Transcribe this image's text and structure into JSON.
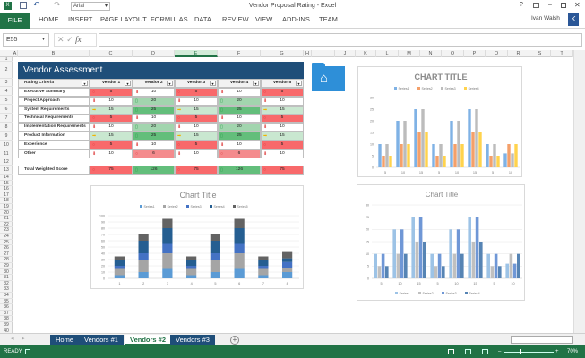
{
  "window": {
    "title": "Vendor Proposal Rating - Excel",
    "user": "Ivan Walsh",
    "avatar_letter": "K",
    "font_box": "Arial"
  },
  "ribbon": {
    "file": "FILE",
    "tabs": [
      "HOME",
      "INSERT",
      "PAGE LAYOUT",
      "FORMULAS",
      "DATA",
      "REVIEW",
      "VIEW",
      "ADD-INS",
      "TEAM"
    ]
  },
  "formula_bar": {
    "name_box": "E55",
    "fx": "fx",
    "value": ""
  },
  "columns": [
    "A",
    "B",
    "C",
    "D",
    "E",
    "F",
    "G",
    "H",
    "I",
    "J",
    "K",
    "L",
    "M",
    "N",
    "O",
    "P",
    "Q",
    "R",
    "S",
    "T"
  ],
  "selected_column": "E",
  "row_numbers": [
    1,
    2,
    3,
    4,
    5,
    6,
    7,
    8,
    9,
    10,
    11,
    12,
    13,
    14,
    15,
    16,
    17,
    18,
    19,
    20,
    21,
    22,
    23,
    24,
    25,
    26,
    27,
    28,
    29,
    30,
    31,
    32,
    33,
    34,
    35,
    36,
    37,
    38,
    39,
    40
  ],
  "table": {
    "title": "Vendor Assessment",
    "header": [
      "Rating Criteria",
      "Vendor 1",
      "Vendor 2",
      "Vendor 3",
      "Vendor 4",
      "Vendor 5"
    ],
    "rows": [
      {
        "label": "Executive Summary",
        "values": [
          5,
          10,
          5,
          10,
          5
        ]
      },
      {
        "label": "Project Approach",
        "values": [
          10,
          20,
          10,
          20,
          10
        ]
      },
      {
        "label": "System Requirements",
        "values": [
          15,
          25,
          15,
          25,
          15
        ]
      },
      {
        "label": "Technical Requirements",
        "values": [
          5,
          10,
          5,
          10,
          5
        ]
      },
      {
        "label": "Implementation Requirements",
        "values": [
          10,
          20,
          10,
          20,
          10
        ]
      },
      {
        "label": "Product Information",
        "values": [
          15,
          25,
          15,
          25,
          15
        ]
      },
      {
        "label": "Experience",
        "values": [
          5,
          10,
          5,
          10,
          5
        ]
      },
      {
        "label": "Other",
        "values": [
          10,
          6,
          10,
          6,
          10
        ]
      }
    ],
    "total": {
      "label": "Total Weighted Score",
      "values": [
        75,
        126,
        75,
        126,
        75
      ]
    }
  },
  "colors": {
    "red": "#f8696b",
    "pink": "#f48b8d",
    "white": "#ffffff",
    "light_green": "#c9e7d0",
    "mid_green": "#a2d5ae",
    "green": "#63be7b",
    "accent": "#217346",
    "header_blue": "#1f4e79"
  },
  "chart_data": [
    {
      "type": "bar",
      "title": "CHART TITLE",
      "legend": "top",
      "categories": [
        "5",
        "10",
        "15",
        "5",
        "10",
        "15",
        "5",
        "10"
      ],
      "series": [
        {
          "name": "Series1",
          "values": [
            10,
            20,
            25,
            10,
            20,
            25,
            10,
            6
          ],
          "color": "#7fb2e5"
        },
        {
          "name": "Series2",
          "values": [
            5,
            10,
            15,
            5,
            10,
            15,
            5,
            10
          ],
          "color": "#f4a06a"
        },
        {
          "name": "Series3",
          "values": [
            10,
            20,
            25,
            10,
            20,
            25,
            10,
            6
          ],
          "color": "#bcbcbc"
        },
        {
          "name": "Series4",
          "values": [
            5,
            10,
            15,
            5,
            10,
            15,
            5,
            10
          ],
          "color": "#ffd34d"
        }
      ],
      "ylim": [
        0,
        30
      ],
      "yticks": [
        0,
        5,
        10,
        15,
        20,
        25,
        30
      ],
      "grid": false
    },
    {
      "type": "bar",
      "stacked": true,
      "title": "Chart Title",
      "legend": "top",
      "categories": [
        "1",
        "2",
        "3",
        "4",
        "5",
        "6",
        "7",
        "8"
      ],
      "series": [
        {
          "name": "Series1",
          "values": [
            5,
            10,
            15,
            5,
            10,
            15,
            5,
            10
          ],
          "color": "#5b9bd5"
        },
        {
          "name": "Series2",
          "values": [
            10,
            20,
            25,
            10,
            20,
            25,
            10,
            6
          ],
          "color": "#a5a5a5"
        },
        {
          "name": "Series3",
          "values": [
            5,
            10,
            15,
            5,
            10,
            15,
            5,
            10
          ],
          "color": "#4472c4"
        },
        {
          "name": "Series4",
          "values": [
            10,
            20,
            25,
            10,
            20,
            25,
            10,
            6
          ],
          "color": "#255e91"
        },
        {
          "name": "Series5",
          "values": [
            5,
            10,
            15,
            5,
            10,
            15,
            5,
            10
          ],
          "color": "#636363"
        }
      ],
      "ylim": [
        0,
        100
      ],
      "yticks": [
        0,
        10,
        20,
        30,
        40,
        50,
        60,
        70,
        80,
        90,
        100
      ],
      "grid": true
    },
    {
      "type": "bar",
      "title": "Chart Title",
      "legend": "bottom",
      "categories": [
        "5",
        "10",
        "15",
        "5",
        "10",
        "15",
        "5",
        "10"
      ],
      "series": [
        {
          "name": "Series1",
          "values": [
            10,
            20,
            25,
            10,
            20,
            25,
            10,
            6
          ],
          "color": "#9dc3e6"
        },
        {
          "name": "Series2",
          "values": [
            5,
            10,
            15,
            5,
            10,
            15,
            5,
            10
          ],
          "color": "#c0c0c0"
        },
        {
          "name": "Series3",
          "values": [
            10,
            20,
            25,
            10,
            20,
            25,
            10,
            6
          ],
          "color": "#6f97d6"
        },
        {
          "name": "Series4",
          "values": [
            5,
            10,
            15,
            5,
            10,
            15,
            5,
            10
          ],
          "color": "#5684b4"
        }
      ],
      "ylim": [
        0,
        30
      ],
      "yticks": [
        0,
        5,
        10,
        15,
        20,
        25,
        30
      ],
      "grid": true
    }
  ],
  "sheets": {
    "tabs": [
      "Home",
      "Vendors #1",
      "Vendors #2",
      "Vendors #3"
    ],
    "active": "Vendors #2"
  },
  "status": {
    "text": "READY",
    "zoom": "70%"
  }
}
